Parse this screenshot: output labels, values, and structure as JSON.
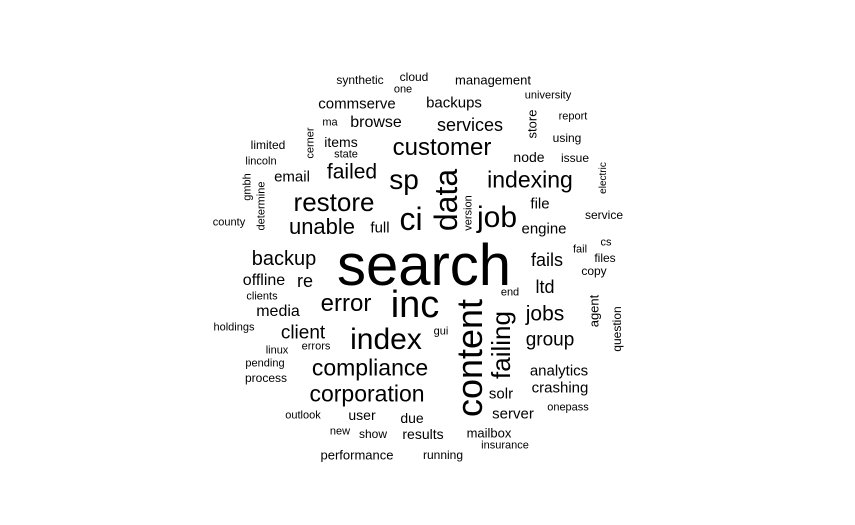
{
  "cloud": {
    "text_color": "#000000",
    "background": "#ffffff",
    "words": [
      {
        "text": "search",
        "weight": 100,
        "orientation": "horizontal"
      },
      {
        "text": "inc",
        "weight": 62,
        "orientation": "horizontal"
      },
      {
        "text": "content",
        "weight": 56,
        "orientation": "vertical"
      },
      {
        "text": "data",
        "weight": 50,
        "orientation": "vertical"
      },
      {
        "text": "ci",
        "weight": 48,
        "orientation": "horizontal"
      },
      {
        "text": "job",
        "weight": 46,
        "orientation": "horizontal"
      },
      {
        "text": "index",
        "weight": 42,
        "orientation": "horizontal"
      },
      {
        "text": "sp",
        "weight": 40,
        "orientation": "horizontal"
      },
      {
        "text": "failing",
        "weight": 38,
        "orientation": "vertical"
      },
      {
        "text": "restore",
        "weight": 36,
        "orientation": "horizontal"
      },
      {
        "text": "customer",
        "weight": 32,
        "orientation": "horizontal"
      },
      {
        "text": "error",
        "weight": 32,
        "orientation": "horizontal"
      },
      {
        "text": "compliance",
        "weight": 31,
        "orientation": "horizontal"
      },
      {
        "text": "indexing",
        "weight": 31,
        "orientation": "horizontal"
      },
      {
        "text": "unable",
        "weight": 30,
        "orientation": "horizontal"
      },
      {
        "text": "corporation",
        "weight": 30,
        "orientation": "horizontal"
      },
      {
        "text": "jobs",
        "weight": 28,
        "orientation": "horizontal"
      },
      {
        "text": "backup",
        "weight": 27,
        "orientation": "horizontal"
      },
      {
        "text": "failed",
        "weight": 27,
        "orientation": "horizontal"
      },
      {
        "text": "client",
        "weight": 24,
        "orientation": "horizontal"
      },
      {
        "text": "group",
        "weight": 24,
        "orientation": "horizontal"
      },
      {
        "text": "services",
        "weight": 22,
        "orientation": "horizontal"
      },
      {
        "text": "fails",
        "weight": 22,
        "orientation": "horizontal"
      },
      {
        "text": "ltd",
        "weight": 22,
        "orientation": "horizontal"
      },
      {
        "text": "re",
        "weight": 22,
        "orientation": "horizontal"
      },
      {
        "text": "offline",
        "weight": 19,
        "orientation": "horizontal"
      },
      {
        "text": "media",
        "weight": 19,
        "orientation": "horizontal"
      },
      {
        "text": "browse",
        "weight": 19,
        "orientation": "horizontal"
      },
      {
        "text": "engine",
        "weight": 18,
        "orientation": "horizontal"
      },
      {
        "text": "backups",
        "weight": 18,
        "orientation": "horizontal"
      },
      {
        "text": "commserve",
        "weight": 17,
        "orientation": "horizontal"
      },
      {
        "text": "file",
        "weight": 17,
        "orientation": "horizontal"
      },
      {
        "text": "email",
        "weight": 17,
        "orientation": "horizontal"
      },
      {
        "text": "items",
        "weight": 17,
        "orientation": "horizontal"
      },
      {
        "text": "full",
        "weight": 17,
        "orientation": "horizontal"
      },
      {
        "text": "node",
        "weight": 16,
        "orientation": "horizontal"
      },
      {
        "text": "analytics",
        "weight": 16,
        "orientation": "horizontal"
      },
      {
        "text": "crashing",
        "weight": 16,
        "orientation": "horizontal"
      },
      {
        "text": "server",
        "weight": 16,
        "orientation": "horizontal"
      },
      {
        "text": "solr",
        "weight": 16,
        "orientation": "horizontal"
      },
      {
        "text": "user",
        "weight": 16,
        "orientation": "horizontal"
      },
      {
        "text": "results",
        "weight": 16,
        "orientation": "horizontal"
      },
      {
        "text": "due",
        "weight": 15,
        "orientation": "horizontal"
      },
      {
        "text": "agent",
        "weight": 14,
        "orientation": "vertical"
      },
      {
        "text": "store",
        "weight": 14,
        "orientation": "vertical"
      },
      {
        "text": "management",
        "weight": 14,
        "orientation": "horizontal"
      },
      {
        "text": "performance",
        "weight": 14,
        "orientation": "horizontal"
      },
      {
        "text": "mailbox",
        "weight": 14,
        "orientation": "horizontal"
      },
      {
        "text": "synthetic",
        "weight": 13,
        "orientation": "horizontal"
      },
      {
        "text": "cloud",
        "weight": 13,
        "orientation": "horizontal"
      },
      {
        "text": "limited",
        "weight": 13,
        "orientation": "horizontal"
      },
      {
        "text": "issue",
        "weight": 13,
        "orientation": "horizontal"
      },
      {
        "text": "using",
        "weight": 13,
        "orientation": "horizontal"
      },
      {
        "text": "service",
        "weight": 13,
        "orientation": "horizontal"
      },
      {
        "text": "copy",
        "weight": 13,
        "orientation": "horizontal"
      },
      {
        "text": "files",
        "weight": 13,
        "orientation": "horizontal"
      },
      {
        "text": "process",
        "weight": 13,
        "orientation": "horizontal"
      },
      {
        "text": "show",
        "weight": 13,
        "orientation": "horizontal"
      },
      {
        "text": "running",
        "weight": 13,
        "orientation": "horizontal"
      },
      {
        "text": "question",
        "weight": 13,
        "orientation": "vertical"
      },
      {
        "text": "onepass",
        "weight": 12,
        "orientation": "horizontal"
      },
      {
        "text": "insurance",
        "weight": 12,
        "orientation": "horizontal"
      },
      {
        "text": "outlook",
        "weight": 12,
        "orientation": "horizontal"
      },
      {
        "text": "clients",
        "weight": 12,
        "orientation": "horizontal"
      },
      {
        "text": "holdings",
        "weight": 12,
        "orientation": "horizontal"
      },
      {
        "text": "county",
        "weight": 12,
        "orientation": "horizontal"
      },
      {
        "text": "lincoln",
        "weight": 12,
        "orientation": "horizontal"
      },
      {
        "text": "linux",
        "weight": 12,
        "orientation": "horizontal"
      },
      {
        "text": "pending",
        "weight": 12,
        "orientation": "horizontal"
      },
      {
        "text": "errors",
        "weight": 12,
        "orientation": "horizontal"
      },
      {
        "text": "gui",
        "weight": 12,
        "orientation": "horizontal"
      },
      {
        "text": "end",
        "weight": 12,
        "orientation": "horizontal"
      },
      {
        "text": "fail",
        "weight": 12,
        "orientation": "horizontal"
      },
      {
        "text": "cs",
        "weight": 12,
        "orientation": "horizontal"
      },
      {
        "text": "university",
        "weight": 12,
        "orientation": "horizontal"
      },
      {
        "text": "report",
        "weight": 12,
        "orientation": "horizontal"
      },
      {
        "text": "one",
        "weight": 12,
        "orientation": "horizontal"
      },
      {
        "text": "ma",
        "weight": 12,
        "orientation": "horizontal"
      },
      {
        "text": "state",
        "weight": 12,
        "orientation": "horizontal"
      },
      {
        "text": "new",
        "weight": 12,
        "orientation": "horizontal"
      },
      {
        "text": "cerner",
        "weight": 12,
        "orientation": "vertical"
      },
      {
        "text": "gmbh",
        "weight": 12,
        "orientation": "vertical"
      },
      {
        "text": "determine",
        "weight": 12,
        "orientation": "vertical"
      },
      {
        "text": "version",
        "weight": 12,
        "orientation": "vertical"
      },
      {
        "text": "electric",
        "weight": 11,
        "orientation": "vertical"
      }
    ]
  }
}
